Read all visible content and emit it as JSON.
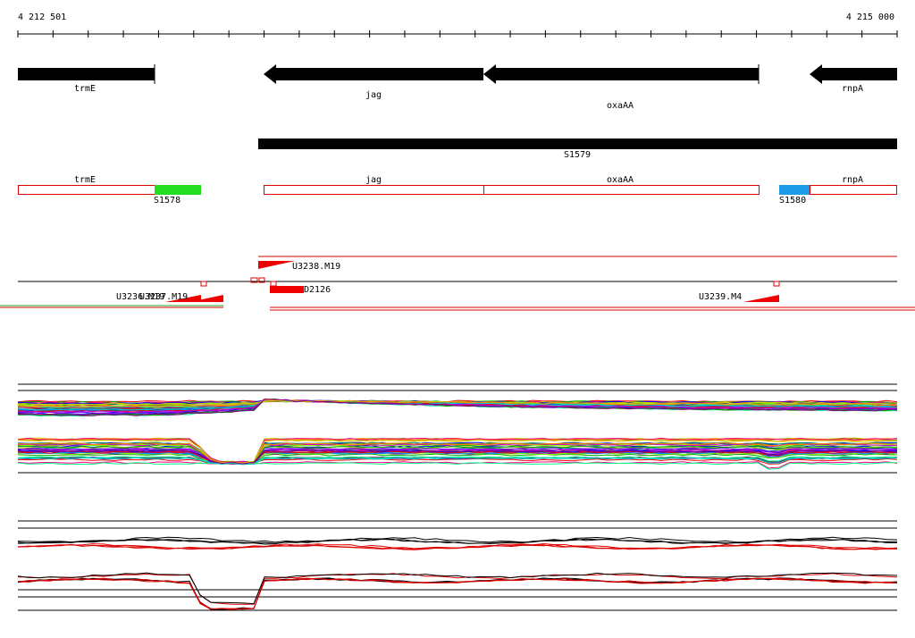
{
  "ruler": {
    "start": "4 212 501",
    "end": "4 215 000"
  },
  "genes": [
    "trmE",
    "jag",
    "oxaAA",
    "rnpA"
  ],
  "operon": "S1579",
  "transcripts": {
    "genes": [
      "trmE",
      "jag",
      "oxaAA",
      "rnpA"
    ],
    "left": "S1578",
    "right": "S1580"
  },
  "features": [
    "U3238.M19",
    "D2126",
    "U3236.M19",
    "U3237.M19",
    "U3239.M4"
  ]
}
